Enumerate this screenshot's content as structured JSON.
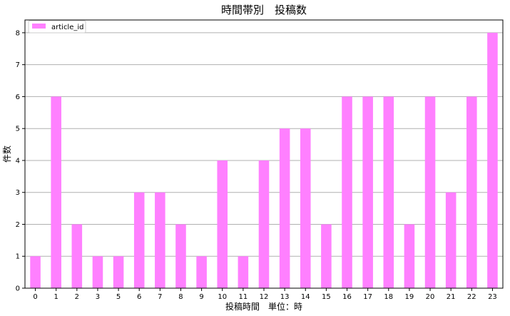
{
  "chart_data": {
    "type": "bar",
    "title": "時間帯別　投稿数",
    "xlabel": "投稿時間　単位：時",
    "ylabel": "件数",
    "categories": [
      "0",
      "1",
      "2",
      "3",
      "5",
      "6",
      "7",
      "8",
      "9",
      "10",
      "11",
      "12",
      "13",
      "14",
      "15",
      "16",
      "17",
      "18",
      "19",
      "20",
      "21",
      "22",
      "23"
    ],
    "series": [
      {
        "name": "article_id",
        "values": [
          1,
          6,
          2,
          1,
          1,
          3,
          3,
          2,
          1,
          4,
          1,
          4,
          5,
          5,
          2,
          6,
          6,
          6,
          2,
          6,
          3,
          6,
          8
        ]
      }
    ],
    "yticks": [
      "0",
      "1",
      "2",
      "3",
      "4",
      "5",
      "6",
      "7",
      "8"
    ],
    "ylim": [
      0,
      8.4
    ],
    "grid": "horizontal",
    "legend": "top-left",
    "bar_color": "#ff80ff",
    "grid_color": "#b0b0b0"
  }
}
